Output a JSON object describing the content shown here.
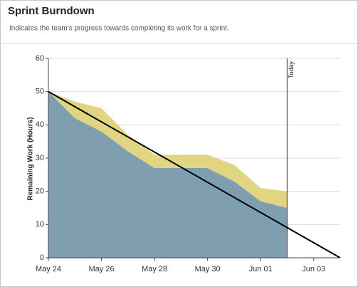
{
  "chart_data": {
    "type": "stacked-area",
    "title": "Sprint Burndown",
    "subtitle": "Indicates the team's progress towards completing its work for a sprint.",
    "ylabel": "Remaining Work (Hours)",
    "x": [
      0,
      1,
      2,
      3,
      4,
      5,
      6,
      7,
      8,
      9
    ],
    "series": [
      {
        "color": "#7f9fb1",
        "values": [
          50,
          42,
          38,
          32,
          27,
          27,
          27,
          23,
          17,
          15
        ]
      },
      {
        "color": "#e2d581",
        "values": [
          0,
          5,
          7,
          5,
          4,
          4,
          4,
          5,
          4,
          5
        ]
      }
    ],
    "ideal": {
      "x": [
        0,
        11
      ],
      "values": [
        50,
        0
      ],
      "color": "#000000"
    },
    "today": {
      "x": 9,
      "label": "Today",
      "color": "#a0302a"
    },
    "xlim": [
      0,
      11
    ],
    "xticks": [
      {
        "value": 0,
        "label": "May 24"
      },
      {
        "value": 2,
        "label": "May 26"
      },
      {
        "value": 4,
        "label": "May 28"
      },
      {
        "value": 6,
        "label": "May 30"
      },
      {
        "value": 8,
        "label": "Jun 01"
      },
      {
        "value": 10,
        "label": "Jun 03"
      }
    ],
    "ylim": [
      0,
      60
    ],
    "yticks": [
      0,
      10,
      20,
      30,
      40,
      50,
      60
    ],
    "grid": true
  }
}
